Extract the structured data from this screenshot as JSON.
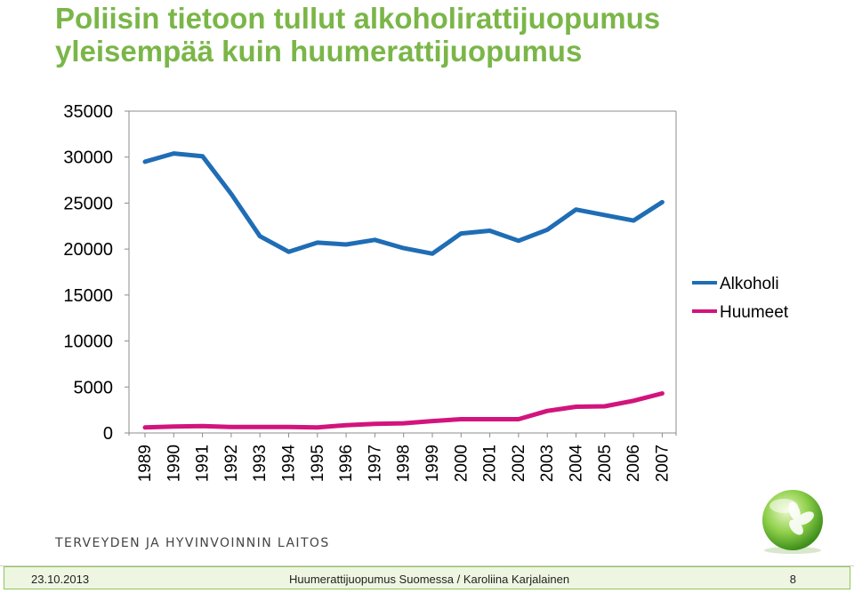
{
  "slide": {
    "title_line1": "Poliisin tietoon tullut alkoholirattijuopumus",
    "title_line2": "yleisempää kuin huumerattijuopumus"
  },
  "chart_data": {
    "type": "line",
    "title": "Poliisin tietoon tullut alkoholirattijuopumus yleisempää kuin huumerattijuopumus",
    "categories": [
      "1989",
      "1990",
      "1991",
      "1992",
      "1993",
      "1994",
      "1995",
      "1996",
      "1997",
      "1998",
      "1999",
      "2000",
      "2001",
      "2002",
      "2003",
      "2004",
      "2005",
      "2006",
      "2007"
    ],
    "series": [
      {
        "name": "Alkoholi",
        "color": "#1f6db5",
        "values": [
          29500,
          30400,
          30100,
          26000,
          21400,
          19700,
          20700,
          20500,
          21000,
          20100,
          19500,
          21700,
          22000,
          20900,
          22100,
          24300,
          23700,
          23100,
          25100
        ]
      },
      {
        "name": "Huumeet",
        "color": "#d2147c",
        "values": [
          600,
          700,
          750,
          650,
          650,
          650,
          600,
          850,
          1000,
          1050,
          1300,
          1500,
          1500,
          1500,
          2400,
          2850,
          2900,
          3500,
          4300
        ]
      }
    ],
    "y_ticks": [
      0,
      5000,
      10000,
      15000,
      20000,
      25000,
      30000,
      35000
    ],
    "ylim": [
      0,
      35000
    ],
    "grid": false,
    "legend_position": "right"
  },
  "branding": {
    "organization": "TERVEYDEN JA HYVINVOINNIN LAITOS",
    "accent_color": "#7ab648"
  },
  "footer": {
    "date": "23.10.2013",
    "presentation": "Huumerattijuopumus Suomessa / Karoliina Karjalainen",
    "page_number": "8"
  }
}
